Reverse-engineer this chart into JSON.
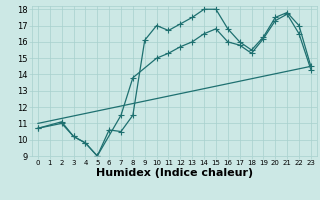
{
  "xlabel": "Humidex (Indice chaleur)",
  "bg_color": "#cce8e5",
  "line_color": "#1e7070",
  "grid_color": "#a8d0ce",
  "xlim": [
    -0.5,
    23.5
  ],
  "ylim": [
    9,
    18.2
  ],
  "xticks": [
    0,
    1,
    2,
    3,
    4,
    5,
    6,
    7,
    8,
    9,
    10,
    11,
    12,
    13,
    14,
    15,
    16,
    17,
    18,
    19,
    20,
    21,
    22,
    23
  ],
  "yticks": [
    9,
    10,
    11,
    12,
    13,
    14,
    15,
    16,
    17,
    18
  ],
  "lines": [
    {
      "x": [
        0,
        2,
        3,
        4,
        5,
        6,
        7,
        8,
        9,
        10,
        11,
        12,
        13,
        14,
        15,
        16,
        17,
        18,
        19,
        20,
        21,
        22,
        23
      ],
      "y": [
        10.7,
        11.1,
        10.2,
        9.8,
        9.0,
        10.6,
        10.5,
        11.5,
        16.1,
        17.0,
        16.7,
        17.1,
        17.5,
        18.0,
        18.0,
        16.8,
        16.0,
        15.5,
        16.3,
        17.5,
        17.8,
        17.0,
        14.5
      ],
      "has_marker": true
    },
    {
      "x": [
        0,
        2,
        3,
        4,
        5,
        7,
        8,
        10,
        11,
        12,
        13,
        14,
        15,
        16,
        17,
        18,
        19,
        20,
        21,
        22,
        23
      ],
      "y": [
        10.7,
        11.0,
        10.2,
        9.8,
        9.0,
        11.5,
        13.8,
        15.0,
        15.3,
        15.7,
        16.0,
        16.5,
        16.8,
        16.0,
        15.8,
        15.3,
        16.2,
        17.3,
        17.7,
        16.5,
        14.3
      ],
      "has_marker": true
    },
    {
      "x": [
        0,
        23
      ],
      "y": [
        11.0,
        14.5
      ],
      "has_marker": false
    }
  ],
  "marker": "P",
  "markersize": 3,
  "linewidth": 0.9,
  "tick_fontsize": 6,
  "xlabel_fontsize": 8,
  "xlabel_fontweight": "bold"
}
